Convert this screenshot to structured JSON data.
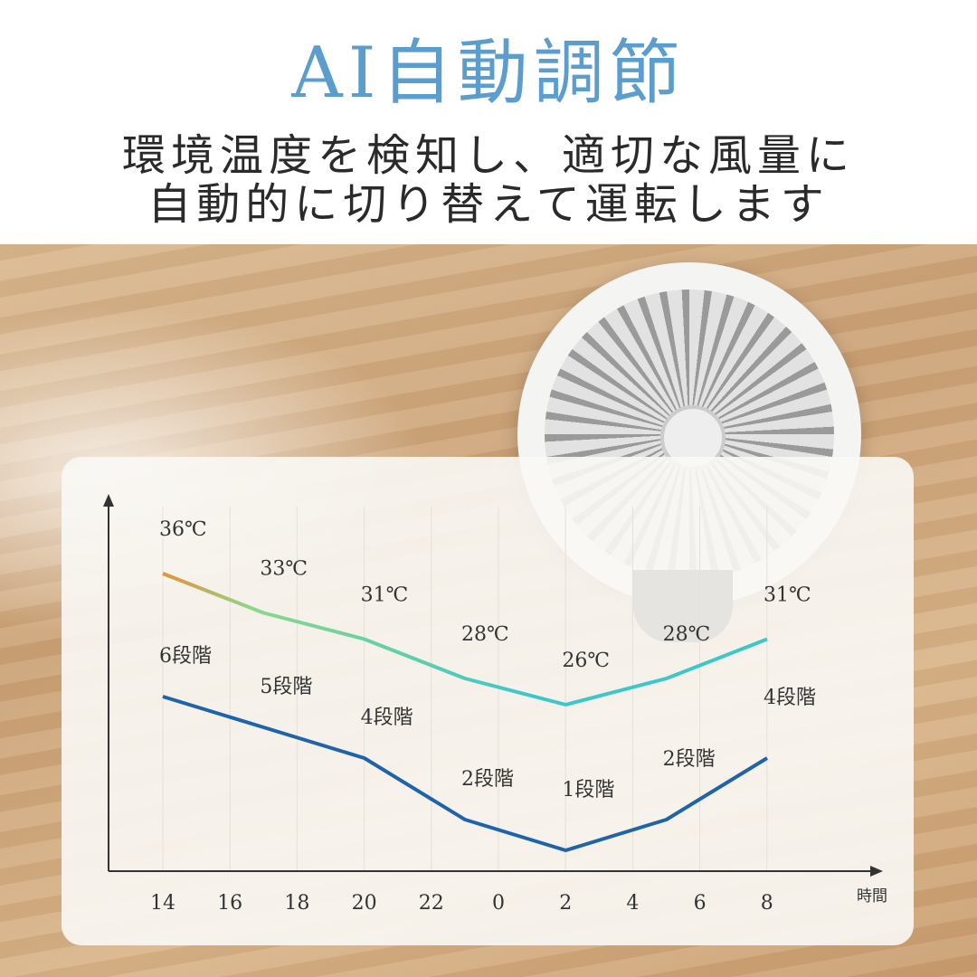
{
  "header": {
    "title": "AI自動調節",
    "subtitle_line1": "環境温度を検知し、適切な風量に",
    "subtitle_line2": "自動的に切り替えて運転します"
  },
  "colors": {
    "title": "#5b9dcc",
    "temp_start": "#e8923a",
    "temp_mid": "#8ad88a",
    "temp_end": "#3cc8c8",
    "level_line": "#1f64a8"
  },
  "chart_data": {
    "type": "line",
    "xlabel": "時間",
    "x_ticks": [
      "14",
      "16",
      "18",
      "20",
      "22",
      "0",
      "2",
      "4",
      "6",
      "8"
    ],
    "x": [
      14,
      17,
      20,
      23,
      2,
      5,
      8
    ],
    "series": [
      {
        "values": [
          36,
          33,
          31,
          28,
          26,
          28,
          31
        ],
        "labels": [
          "36℃",
          "33℃",
          "31℃",
          "28℃",
          "26℃",
          "28℃",
          "31℃"
        ],
        "color": "gradient orange→green→cyan"
      },
      {
        "values": [
          6,
          5,
          4,
          2,
          1,
          2,
          4
        ],
        "labels": [
          "6段階",
          "5段階",
          "4段階",
          "2段階",
          "1段階",
          "2段階",
          "4段階"
        ],
        "color": "#1f64a8"
      }
    ],
    "grid": "vertical lines"
  }
}
